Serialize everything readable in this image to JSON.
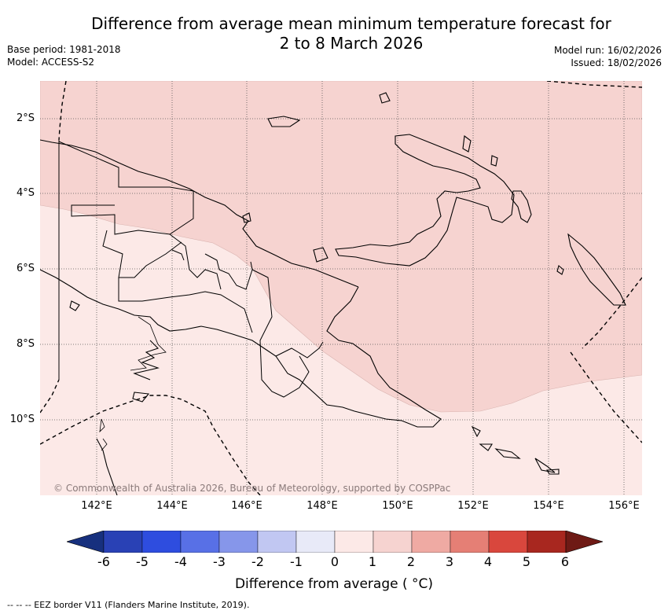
{
  "title_line1": "Difference from average mean minimum temperature forecast for",
  "title_line2": "2 to 8 March 2026",
  "meta_left": [
    "Base period: 1981-2018",
    "Model: ACCESS-S2"
  ],
  "meta_right": [
    "Model run: 16/02/2026",
    "Issued: 18/02/2026"
  ],
  "map": {
    "lon_range": [
      140.5,
      156.5
    ],
    "lat_range": [
      -12.0,
      -1.0
    ],
    "lon_ticks": [
      "142°E",
      "144°E",
      "146°E",
      "148°E",
      "150°E",
      "152°E",
      "154°E",
      "156°E"
    ],
    "lat_ticks": [
      "2°S",
      "4°S",
      "6°S",
      "8°S",
      "10°S"
    ],
    "grid": true,
    "copyright": "© Commonwealth of Australia 2026, Bureau of Meteorology, supported by COSPPac"
  },
  "colorbar": {
    "label": "Difference from average ( °C)",
    "ticks": [
      "-6",
      "-5",
      "-4",
      "-3",
      "-2",
      "-1",
      "0",
      "1",
      "2",
      "3",
      "4",
      "5",
      "6"
    ],
    "colors": [
      "#17307e",
      "#2941b5",
      "#2e4ddf",
      "#5870e6",
      "#8696ea",
      "#c1c7f2",
      "#e8eaf8",
      "#fce9e7",
      "#f6d3d0",
      "#efaaa3",
      "#e57f75",
      "#d9473d",
      "#a8271f",
      "#6e1a15"
    ],
    "map_colors": {
      "0-1": "#fce9e7",
      "1-2": "#f6d3d0"
    }
  },
  "footnote": "-- -- -- EEZ border V11 (Flanders Marine Institute, 2019)."
}
